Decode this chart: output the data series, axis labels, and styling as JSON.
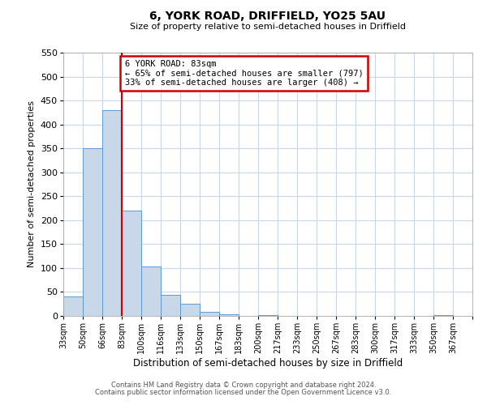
{
  "title": "6, YORK ROAD, DRIFFIELD, YO25 5AU",
  "subtitle": "Size of property relative to semi-detached houses in Driffield",
  "xlabel": "Distribution of semi-detached houses by size in Driffield",
  "ylabel": "Number of semi-detached properties",
  "footnote1": "Contains HM Land Registry data © Crown copyright and database right 2024.",
  "footnote2": "Contains public sector information licensed under the Open Government Licence v3.0.",
  "bin_labels": [
    "33sqm",
    "50sqm",
    "66sqm",
    "83sqm",
    "100sqm",
    "116sqm",
    "133sqm",
    "150sqm",
    "167sqm",
    "183sqm",
    "200sqm",
    "217sqm",
    "233sqm",
    "250sqm",
    "267sqm",
    "283sqm",
    "300sqm",
    "317sqm",
    "333sqm",
    "350sqm",
    "367sqm"
  ],
  "bar_values": [
    40,
    350,
    430,
    220,
    103,
    44,
    26,
    8,
    3,
    0,
    2,
    0,
    0,
    0,
    0,
    0,
    0,
    0,
    0,
    2,
    0
  ],
  "bar_color": "#c8d8e8",
  "bar_edge_color": "#5b9bd5",
  "property_line_x": 3,
  "property_line_color": "#cc0000",
  "ylim": [
    0,
    550
  ],
  "yticks": [
    0,
    50,
    100,
    150,
    200,
    250,
    300,
    350,
    400,
    450,
    500,
    550
  ],
  "annotation_box_title": "6 YORK ROAD: 83sqm",
  "annotation_line1": "← 65% of semi-detached houses are smaller (797)",
  "annotation_line2": "33% of semi-detached houses are larger (408) →",
  "annotation_box_color": "#cc0000",
  "background_color": "#ffffff",
  "grid_color": "#c8d8e8"
}
